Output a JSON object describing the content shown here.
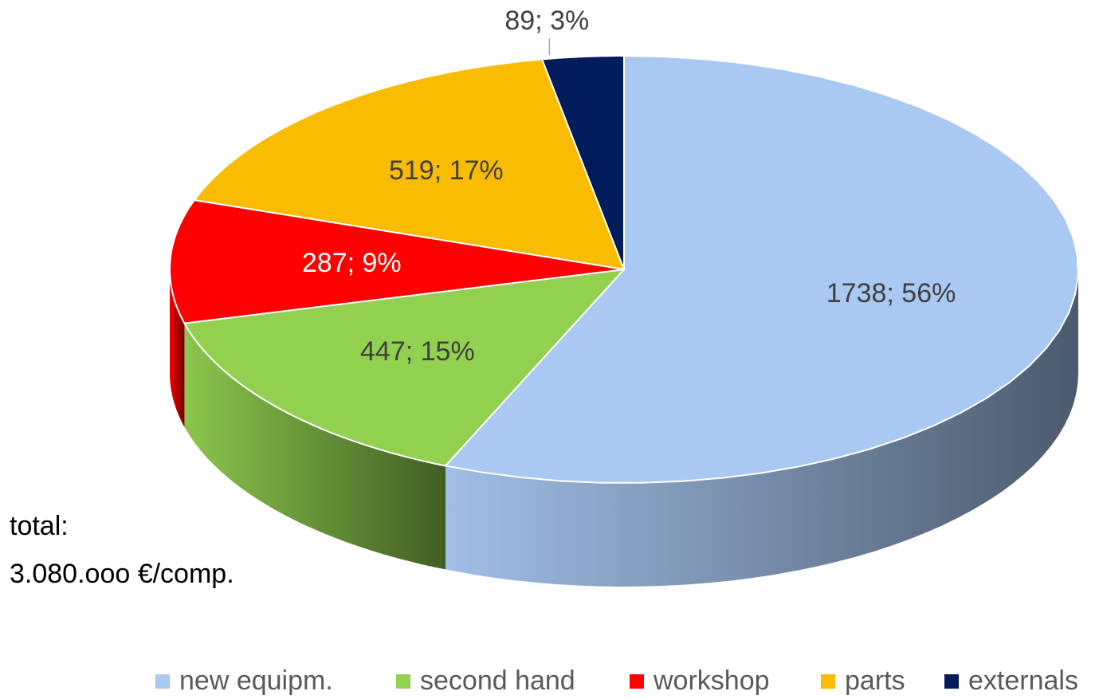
{
  "chart_data": {
    "type": "pie3d",
    "categories": [
      "new equipm.",
      "second hand",
      "workshop",
      "parts",
      "externals"
    ],
    "values": [
      1738,
      447,
      287,
      519,
      89
    ],
    "value_labels": [
      "1738; 56%",
      "447; 15%",
      "287; 9%",
      "519; 17%",
      "89; 3%"
    ],
    "colors": [
      "#a9c8f2",
      "#92d050",
      "#ff0000",
      "#fabc00",
      "#001c5a"
    ],
    "annotation": [
      "total:",
      "3.080.ooo €/comp."
    ],
    "legend": "bottom"
  }
}
